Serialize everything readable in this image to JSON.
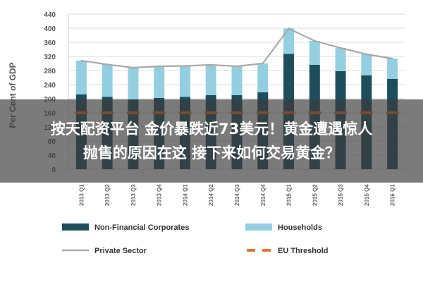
{
  "overlay": {
    "line1": "按天配资平台 金价暴跌近73美元！黄金遭遇惊人",
    "line2": "抛售的原因在这 接下来如何交易黄金？"
  },
  "chart_data": {
    "type": "bar",
    "stacked": true,
    "ylabel": "Per Cent of GDP",
    "ylim": [
      0,
      440
    ],
    "yticks": [
      0,
      40,
      80,
      120,
      160,
      200,
      240,
      280,
      320,
      360,
      400,
      440
    ],
    "grid": true,
    "legend_position": "bottom",
    "categories": [
      "2013 Q1",
      "2013 Q2",
      "2013 Q3",
      "2013 Q4",
      "2014 Q1",
      "2014 Q2",
      "2014 Q3",
      "2014 Q4",
      "2015 Q1",
      "2015 Q2",
      "2015 Q3",
      "2015 Q4",
      "2016 Q1"
    ],
    "series": [
      {
        "name": "Non-Financial Corporates",
        "kind": "bar",
        "color": "#1e4d5c",
        "values": [
          212,
          205,
          198,
          202,
          205,
          210,
          210,
          218,
          327,
          296,
          278,
          266,
          256
        ]
      },
      {
        "name": "Households",
        "kind": "bar",
        "color": "#93cfe0",
        "values": [
          96,
          92,
          90,
          90,
          88,
          86,
          82,
          82,
          72,
          68,
          66,
          60,
          58
        ]
      },
      {
        "name": "Private Sector",
        "kind": "line",
        "color": "#a9a9a9",
        "values": [
          308,
          297,
          288,
          292,
          293,
          296,
          292,
          300,
          399,
          364,
          344,
          326,
          314
        ]
      },
      {
        "name": "EU Threshold",
        "kind": "dash",
        "color": "#e8712c",
        "values": [
          160,
          160,
          160,
          160,
          160,
          160,
          160,
          160,
          160,
          160,
          160,
          160,
          160
        ]
      }
    ]
  }
}
